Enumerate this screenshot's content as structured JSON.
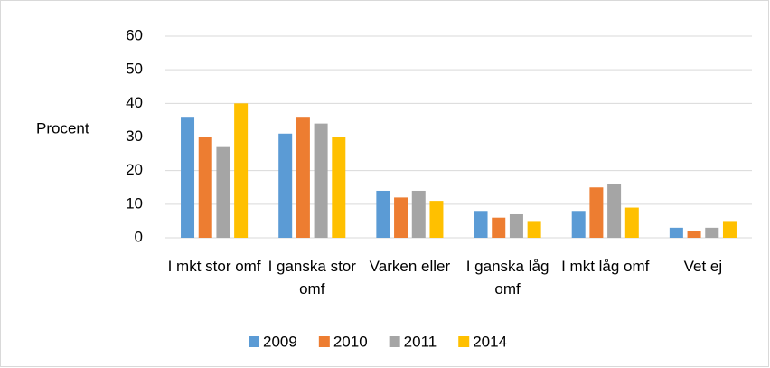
{
  "chart_data": {
    "type": "bar",
    "y_label": "Procent",
    "categories": [
      "I mkt stor omf",
      "I ganska stor omf",
      "Varken eller",
      "I ganska låg omf",
      "I mkt låg omf",
      "Vet ej"
    ],
    "series": [
      {
        "name": "2009",
        "color": "#5b9bd5",
        "values": [
          36,
          31,
          14,
          8,
          8,
          3
        ]
      },
      {
        "name": "2010",
        "color": "#ed7d31",
        "values": [
          30,
          36,
          12,
          6,
          15,
          2
        ]
      },
      {
        "name": "2011",
        "color": "#a5a5a5",
        "values": [
          27,
          34,
          14,
          7,
          16,
          3
        ]
      },
      {
        "name": "2014",
        "color": "#ffc000",
        "values": [
          40,
          30,
          11,
          5,
          9,
          5
        ]
      }
    ],
    "ylim": [
      0,
      60
    ],
    "yticks": [
      0,
      10,
      20,
      30,
      40,
      50,
      60
    ],
    "grid": true,
    "legend": "bottom"
  }
}
